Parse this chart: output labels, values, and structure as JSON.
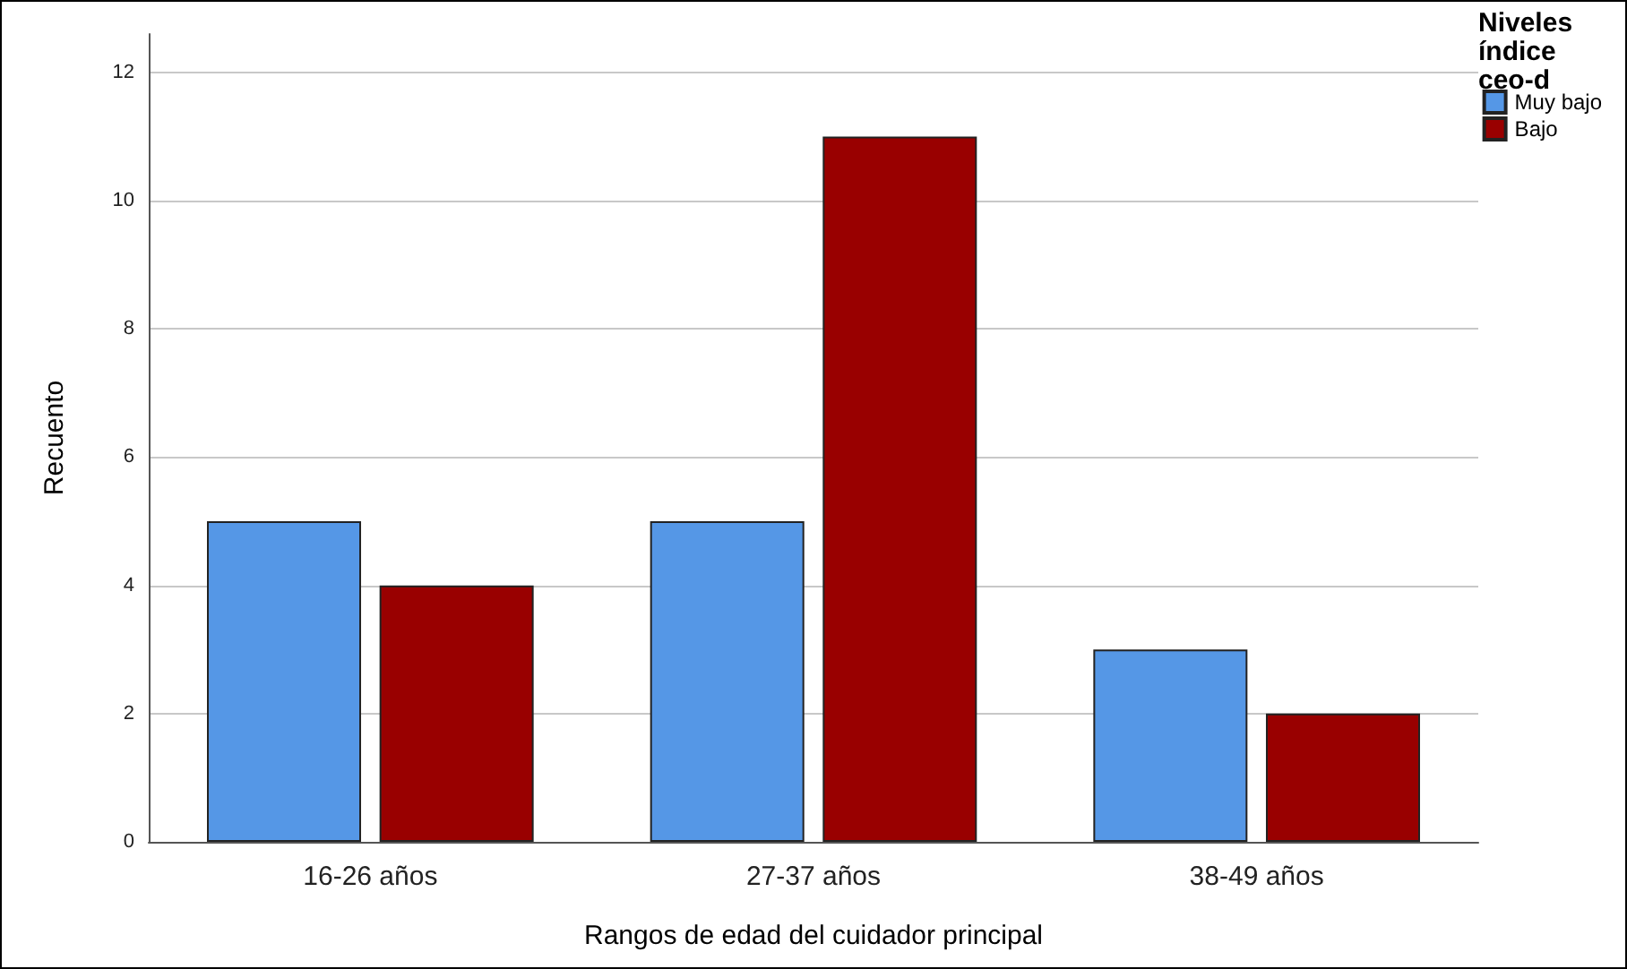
{
  "chart_data": {
    "type": "bar",
    "xlabel": "Rangos de edad del cuidador principal",
    "ylabel": "Recuento",
    "legend_title": "Niveles índice ceo-d",
    "categories": [
      "16-26 años",
      "27-37 años",
      "38-49 años"
    ],
    "series": [
      {
        "name": "Muy bajo",
        "color": "#5597e6",
        "values": [
          5,
          5,
          3
        ]
      },
      {
        "name": "Bajo",
        "color": "#990000",
        "values": [
          4,
          11,
          2
        ]
      }
    ],
    "ylim": [
      0,
      12.6
    ],
    "yticks": [
      0,
      2,
      4,
      6,
      8,
      10,
      12
    ],
    "grid": "y",
    "legend": "top right"
  }
}
